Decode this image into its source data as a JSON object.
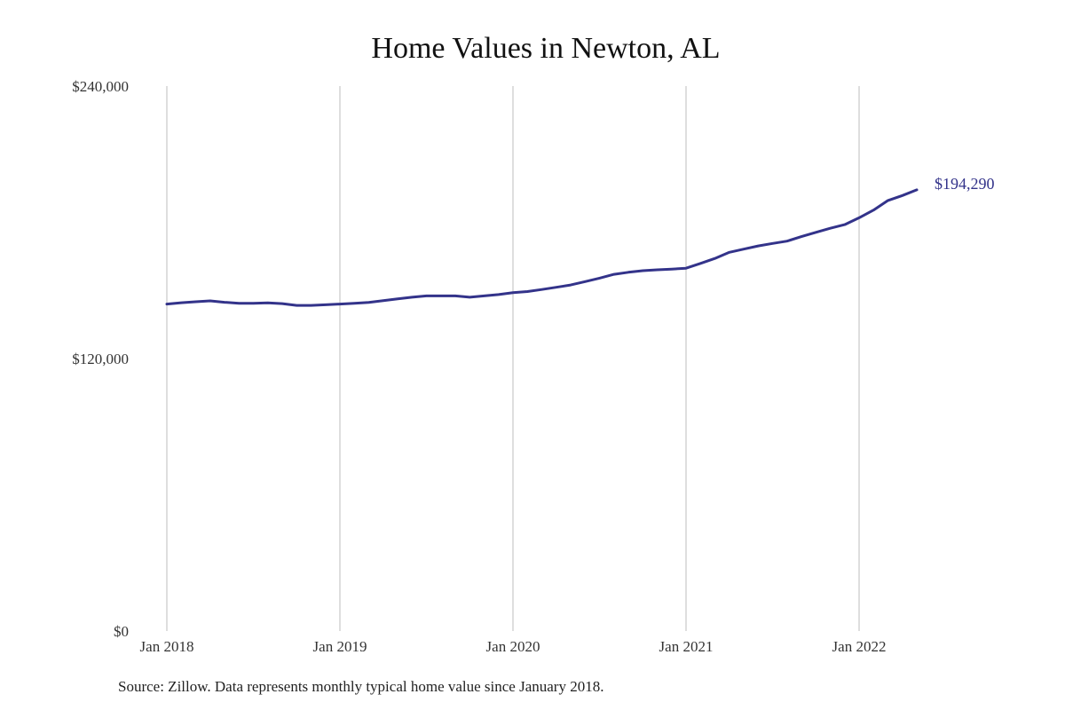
{
  "source_note": "Source: Zillow. Data represents monthly typical home value since January 2018.",
  "colors": {
    "line": "#33338a",
    "grid": "#bdbdbd",
    "text": "#333333"
  },
  "chart_data": {
    "type": "line",
    "title": "Home Values in Newton, AL",
    "xlabel": "",
    "ylabel": "",
    "x_tick_labels": [
      "Jan 2018",
      "Jan 2019",
      "Jan 2020",
      "Jan 2021",
      "Jan 2022"
    ],
    "y_tick_labels": [
      "$0",
      "$120,000",
      "$240,000"
    ],
    "y_ticks": [
      0,
      120000,
      240000
    ],
    "ylim": [
      0,
      240000
    ],
    "xlim": [
      "2018-01",
      "2022-05"
    ],
    "grid": "vertical lines at each January",
    "end_label": "$194,290",
    "series": [
      {
        "x": [
          "2018-01",
          "2018-02",
          "2018-03",
          "2018-04",
          "2018-05",
          "2018-06",
          "2018-07",
          "2018-08",
          "2018-09",
          "2018-10",
          "2018-11",
          "2018-12",
          "2019-01",
          "2019-02",
          "2019-03",
          "2019-04",
          "2019-05",
          "2019-06",
          "2019-07",
          "2019-08",
          "2019-09",
          "2019-10",
          "2019-11",
          "2019-12",
          "2020-01",
          "2020-02",
          "2020-03",
          "2020-04",
          "2020-05",
          "2020-06",
          "2020-07",
          "2020-08",
          "2020-09",
          "2020-10",
          "2020-11",
          "2020-12",
          "2021-01",
          "2021-02",
          "2021-03",
          "2021-04",
          "2021-05",
          "2021-06",
          "2021-07",
          "2021-08",
          "2021-09",
          "2021-10",
          "2021-11",
          "2021-12",
          "2022-01",
          "2022-02",
          "2022-03",
          "2022-04",
          "2022-05"
        ],
        "values": [
          144000,
          144600,
          145000,
          145400,
          144800,
          144300,
          144300,
          144500,
          144200,
          143400,
          143400,
          143700,
          144000,
          144300,
          144700,
          145500,
          146300,
          147000,
          147600,
          147600,
          147600,
          147000,
          147600,
          148200,
          149000,
          149500,
          150400,
          151400,
          152400,
          153900,
          155400,
          157100,
          158000,
          158700,
          159100,
          159400,
          159800,
          161900,
          164100,
          166800,
          168200,
          169600,
          170700,
          171700,
          173700,
          175600,
          177400,
          179000,
          182000,
          185400,
          189600,
          191800,
          194290
        ]
      }
    ]
  }
}
